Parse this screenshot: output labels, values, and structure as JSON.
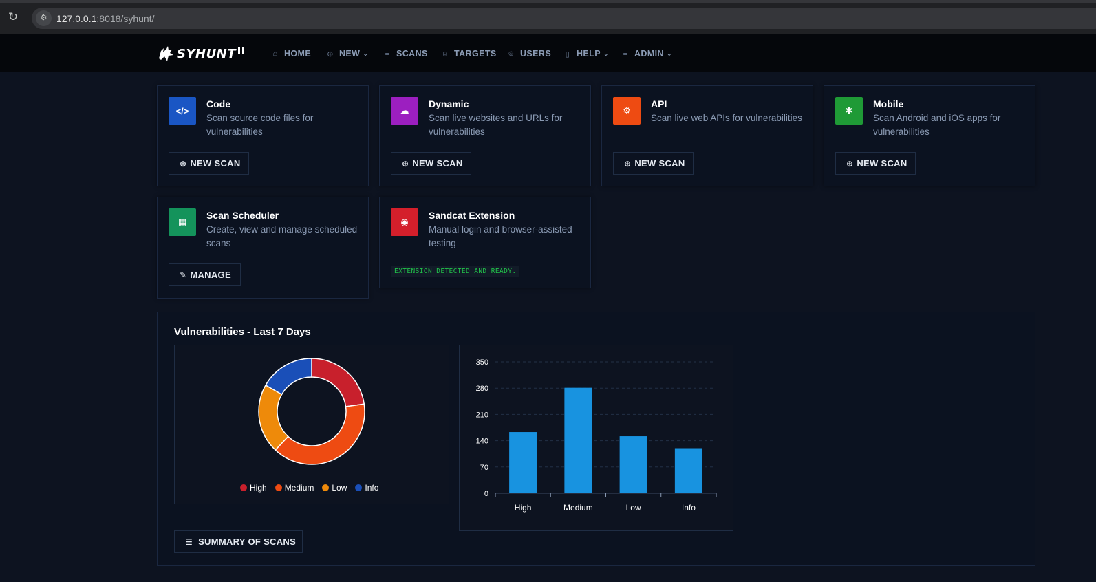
{
  "browser": {
    "url_host": "127.0.0.1",
    "url_path": ":8018/syhunt/"
  },
  "nav": {
    "logo_text": "SYHUNT",
    "items": [
      {
        "label": "HOME",
        "icon": "home-icon",
        "glyph": "⌂",
        "dropdown": false
      },
      {
        "label": "NEW",
        "icon": "plus-circle-icon",
        "glyph": "⊕",
        "dropdown": true
      },
      {
        "label": "SCANS",
        "icon": "list-icon",
        "glyph": "≡",
        "dropdown": false
      },
      {
        "label": "TARGETS",
        "icon": "bookmark-icon",
        "glyph": "⌑",
        "dropdown": false
      },
      {
        "label": "USERS",
        "icon": "users-icon",
        "glyph": "☺",
        "dropdown": false
      },
      {
        "label": "HELP",
        "icon": "book-icon",
        "glyph": "▯",
        "dropdown": true
      },
      {
        "label": "ADMIN",
        "icon": "menu-icon",
        "glyph": "≡",
        "dropdown": true
      }
    ]
  },
  "cards": [
    {
      "title": "Code",
      "desc": "Scan source code files for vulnerabilities",
      "icon": "code-icon",
      "glyph": "</>",
      "color": "#1a56c4",
      "button": "NEW SCAN",
      "button_icon": "plus-circle-icon",
      "button_glyph": "⊕"
    },
    {
      "title": "Dynamic",
      "desc": "Scan live websites and URLs for vulnerabilities",
      "icon": "cloud-icon",
      "glyph": "☁",
      "color": "#9c1fc0",
      "button": "NEW SCAN",
      "button_icon": "plus-circle-icon",
      "button_glyph": "⊕"
    },
    {
      "title": "API",
      "desc": "Scan live web APIs for vulnerabilities",
      "icon": "gears-icon",
      "glyph": "⚙",
      "color": "#ee4b12",
      "button": "NEW SCAN",
      "button_icon": "plus-circle-icon",
      "button_glyph": "⊕"
    },
    {
      "title": "Mobile",
      "desc": "Scan Android and iOS apps for vulnerabilities",
      "icon": "android-icon",
      "glyph": "✱",
      "color": "#1f9a36",
      "button": "NEW SCAN",
      "button_icon": "plus-circle-icon",
      "button_glyph": "⊕"
    },
    {
      "title": "Scan Scheduler",
      "desc": "Create, view and manage scheduled scans",
      "icon": "calendar-icon",
      "glyph": "▦",
      "color": "#14935b",
      "button": "MANAGE",
      "button_icon": "pencil-icon",
      "button_glyph": "✎"
    },
    {
      "title": "Sandcat Extension",
      "desc": "Manual login and browser-assisted testing",
      "icon": "sandcat-icon",
      "glyph": "◉",
      "color": "#d41f2b",
      "status": "EXTENSION DETECTED AND READY."
    }
  ],
  "vulns": {
    "title": "Vulnerabilities - Last 7 Days",
    "summary_button": "SUMMARY OF SCANS",
    "summary_icon": "list-icon"
  },
  "colors": {
    "High": "#c8202c",
    "Medium": "#ee4b12",
    "Low": "#ee8a0a",
    "Info": "#1a4fb8",
    "bar": "#1893e0"
  },
  "chart_data": [
    {
      "type": "pie",
      "categories": [
        "High",
        "Medium",
        "Low",
        "Info"
      ],
      "values": [
        163,
        281,
        152,
        120
      ],
      "donut": true,
      "legend": "bottom"
    },
    {
      "type": "bar",
      "categories": [
        "High",
        "Medium",
        "Low",
        "Info"
      ],
      "values": [
        163,
        281,
        152,
        120
      ],
      "ylim": [
        0,
        350
      ],
      "yticks": [
        0,
        70,
        140,
        210,
        280,
        350
      ],
      "grid": true
    }
  ]
}
